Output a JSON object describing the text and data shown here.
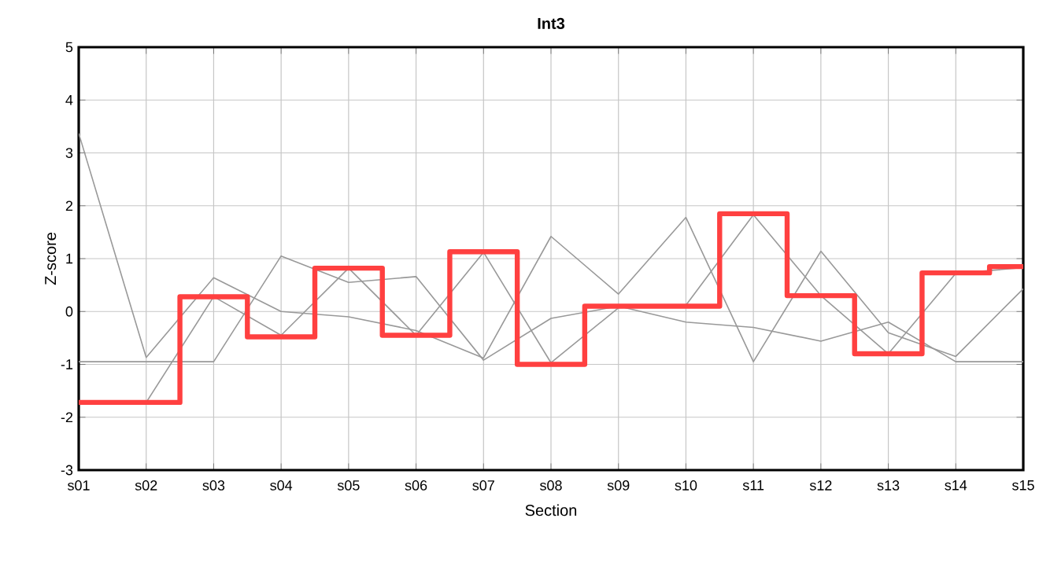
{
  "chart_data": {
    "type": "line",
    "title": "Int3",
    "xlabel": "Section",
    "ylabel": "Z-score",
    "categories": [
      "s01",
      "s02",
      "s03",
      "s04",
      "s05",
      "s06",
      "s07",
      "s08",
      "s09",
      "s10",
      "s11",
      "s12",
      "s13",
      "s14",
      "s15"
    ],
    "ylim": [
      -3,
      5
    ],
    "yticks": [
      -3,
      -2,
      -1,
      0,
      1,
      2,
      3,
      4,
      5
    ],
    "grid": true,
    "marker": "none",
    "series": [
      {
        "color": "#999999",
        "values": [
          3.37,
          -0.87,
          0.64,
          0.0,
          -0.1,
          -0.36,
          -0.88,
          1.42,
          0.33,
          1.78,
          -0.95,
          1.14,
          -0.4,
          -0.85,
          0.43
        ]
      },
      {
        "color": "#999999",
        "values": [
          -1.72,
          -1.72,
          0.28,
          -0.45,
          0.82,
          -0.45,
          1.12,
          -0.97,
          0.07,
          0.12,
          1.83,
          0.3,
          -0.8,
          0.72,
          0.83
        ]
      },
      {
        "color": "#999999",
        "values": [
          -0.95,
          -0.95,
          -0.95,
          1.05,
          0.55,
          0.66,
          -0.92,
          -0.13,
          0.1,
          -0.2,
          -0.3,
          -0.56,
          -0.2,
          -0.95,
          -0.95
        ]
      },
      {
        "type": "step",
        "color": "#ff4040",
        "values": [
          -1.72,
          -1.72,
          0.28,
          -0.48,
          0.82,
          -0.45,
          1.13,
          -1.0,
          0.1,
          0.1,
          1.85,
          0.3,
          -0.8,
          0.73,
          0.85
        ]
      }
    ]
  }
}
